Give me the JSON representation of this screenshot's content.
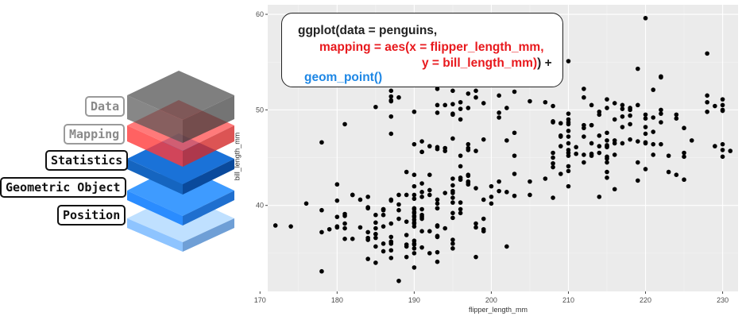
{
  "layers": {
    "data_label": "Data",
    "mapping_label": "Mapping",
    "statistics_label": "Statistics",
    "geometric_label": "Geometric Object",
    "position_label": "Position"
  },
  "code": {
    "line1": "ggplot(data = penguins,",
    "line2": "mapping = aes(x = flipper_length_mm,",
    "line3_red": "y = bill_length_mm)",
    "line3_black": ") +",
    "line4": "geom_point()"
  },
  "colors": {
    "panel_bg": "#ebebeb",
    "grid": "#ffffff",
    "point": "#000000",
    "layer_data": "#5a5a5a",
    "layer_mapping": "#ff4b4b",
    "layer_statistics": "#0a5fc4",
    "layer_geometric": "#2a8cff",
    "layer_position": "#8ec4ff",
    "code_red": "#e8191d",
    "code_blue": "#1e87e5"
  },
  "chart_data": {
    "type": "scatter",
    "title": "",
    "xlabel": "flipper_length_mm",
    "ylabel": "bill_length_mm",
    "xlim": [
      171,
      232
    ],
    "ylim": [
      31,
      61
    ],
    "x_ticks": [
      170,
      180,
      190,
      200,
      210,
      220,
      230
    ],
    "y_ticks": [
      40,
      50,
      60
    ],
    "grid": true,
    "points": [
      [
        181,
        39.1
      ],
      [
        186,
        39.5
      ],
      [
        195,
        40.3
      ],
      [
        193,
        36.7
      ],
      [
        190,
        39.3
      ],
      [
        181,
        38.9
      ],
      [
        195,
        39.2
      ],
      [
        193,
        34.1
      ],
      [
        190,
        42.0
      ],
      [
        186,
        37.8
      ],
      [
        180,
        37.8
      ],
      [
        182,
        41.1
      ],
      [
        191,
        38.6
      ],
      [
        198,
        34.6
      ],
      [
        185,
        36.6
      ],
      [
        195,
        38.7
      ],
      [
        197,
        42.5
      ],
      [
        184,
        34.4
      ],
      [
        194,
        46.0
      ],
      [
        174,
        37.8
      ],
      [
        180,
        37.7
      ],
      [
        189,
        35.9
      ],
      [
        185,
        38.2
      ],
      [
        180,
        38.8
      ],
      [
        187,
        35.3
      ],
      [
        183,
        40.6
      ],
      [
        187,
        40.5
      ],
      [
        172,
        37.9
      ],
      [
        180,
        40.5
      ],
      [
        178,
        39.5
      ],
      [
        178,
        37.2
      ],
      [
        188,
        39.5
      ],
      [
        184,
        40.9
      ],
      [
        195,
        36.4
      ],
      [
        196,
        39.2
      ],
      [
        190,
        38.8
      ],
      [
        180,
        42.2
      ],
      [
        181,
        37.6
      ],
      [
        184,
        39.8
      ],
      [
        182,
        36.5
      ],
      [
        195,
        40.8
      ],
      [
        186,
        36.0
      ],
      [
        196,
        44.1
      ],
      [
        185,
        37.0
      ],
      [
        190,
        39.6
      ],
      [
        182,
        41.1
      ],
      [
        179,
        37.5
      ],
      [
        190,
        36.0
      ],
      [
        191,
        42.3
      ],
      [
        186,
        39.6
      ],
      [
        188,
        40.1
      ],
      [
        190,
        35.0
      ],
      [
        200,
        42.0
      ],
      [
        187,
        34.5
      ],
      [
        191,
        41.4
      ],
      [
        186,
        39.0
      ],
      [
        193,
        40.6
      ],
      [
        181,
        36.5
      ],
      [
        194,
        37.6
      ],
      [
        185,
        35.7
      ],
      [
        195,
        41.3
      ],
      [
        185,
        37.6
      ],
      [
        192,
        41.1
      ],
      [
        184,
        36.4
      ],
      [
        192,
        41.6
      ],
      [
        195,
        35.5
      ],
      [
        188,
        41.1
      ],
      [
        190,
        35.9
      ],
      [
        198,
        41.8
      ],
      [
        190,
        33.5
      ],
      [
        190,
        39.7
      ],
      [
        196,
        39.6
      ],
      [
        197,
        45.8
      ],
      [
        190,
        35.5
      ],
      [
        195,
        42.8
      ],
      [
        191,
        40.9
      ],
      [
        184,
        37.2
      ],
      [
        187,
        36.2
      ],
      [
        195,
        42.1
      ],
      [
        189,
        34.6
      ],
      [
        196,
        42.9
      ],
      [
        187,
        36.7
      ],
      [
        193,
        35.1
      ],
      [
        191,
        37.3
      ],
      [
        194,
        41.3
      ],
      [
        190,
        36.3
      ],
      [
        189,
        36.9
      ],
      [
        189,
        38.3
      ],
      [
        190,
        38.9
      ],
      [
        202,
        35.7
      ],
      [
        205,
        41.1
      ],
      [
        185,
        34.0
      ],
      [
        186,
        39.6
      ],
      [
        187,
        36.2
      ],
      [
        208,
        40.8
      ],
      [
        190,
        38.1
      ],
      [
        196,
        40.3
      ],
      [
        178,
        33.1
      ],
      [
        192,
        43.2
      ],
      [
        192,
        35.0
      ],
      [
        203,
        41.0
      ],
      [
        183,
        37.7
      ],
      [
        190,
        37.8
      ],
      [
        193,
        37.9
      ],
      [
        184,
        39.7
      ],
      [
        199,
        38.6
      ],
      [
        190,
        38.2
      ],
      [
        181,
        38.1
      ],
      [
        197,
        43.2
      ],
      [
        198,
        38.1
      ],
      [
        191,
        45.6
      ],
      [
        193,
        39.7
      ],
      [
        197,
        42.2
      ],
      [
        191,
        39.6
      ],
      [
        196,
        42.7
      ],
      [
        188,
        38.6
      ],
      [
        199,
        37.3
      ],
      [
        189,
        35.7
      ],
      [
        189,
        41.1
      ],
      [
        187,
        36.2
      ],
      [
        198,
        37.7
      ],
      [
        176,
        40.2
      ],
      [
        202,
        41.4
      ],
      [
        186,
        35.2
      ],
      [
        199,
        40.6
      ],
      [
        191,
        38.8
      ],
      [
        195,
        41.5
      ],
      [
        191,
        39.0
      ],
      [
        210,
        44.1
      ],
      [
        190,
        38.5
      ],
      [
        197,
        43.1
      ],
      [
        193,
        36.8
      ],
      [
        199,
        37.5
      ],
      [
        187,
        38.1
      ],
      [
        190,
        41.1
      ],
      [
        191,
        35.6
      ],
      [
        200,
        40.2
      ],
      [
        185,
        37.0
      ],
      [
        193,
        39.7
      ],
      [
        193,
        40.2
      ],
      [
        187,
        40.6
      ],
      [
        188,
        32.1
      ],
      [
        190,
        40.7
      ],
      [
        192,
        37.3
      ],
      [
        185,
        39.0
      ],
      [
        190,
        39.2
      ],
      [
        184,
        36.6
      ],
      [
        195,
        36.0
      ],
      [
        193,
        37.8
      ],
      [
        187,
        36.0
      ],
      [
        201,
        41.5
      ],
      [
        211,
        46.1
      ],
      [
        230,
        50.0
      ],
      [
        210,
        48.7
      ],
      [
        218,
        50.0
      ],
      [
        215,
        47.6
      ],
      [
        210,
        46.5
      ],
      [
        211,
        45.4
      ],
      [
        219,
        46.7
      ],
      [
        209,
        43.3
      ],
      [
        215,
        46.8
      ],
      [
        214,
        40.9
      ],
      [
        216,
        49.0
      ],
      [
        214,
        45.5
      ],
      [
        213,
        48.4
      ],
      [
        210,
        45.8
      ],
      [
        217,
        49.3
      ],
      [
        210,
        42.0
      ],
      [
        221,
        49.2
      ],
      [
        209,
        46.2
      ],
      [
        222,
        48.7
      ],
      [
        218,
        50.2
      ],
      [
        215,
        45.1
      ],
      [
        213,
        46.5
      ],
      [
        215,
        46.3
      ],
      [
        215,
        42.9
      ],
      [
        215,
        46.1
      ],
      [
        215,
        44.5
      ],
      [
        210,
        47.8
      ],
      [
        220,
        48.2
      ],
      [
        222,
        50.0
      ],
      [
        209,
        47.3
      ],
      [
        207,
        42.8
      ],
      [
        230,
        45.1
      ],
      [
        220,
        59.6
      ],
      [
        220,
        49.1
      ],
      [
        213,
        48.4
      ],
      [
        219,
        42.6
      ],
      [
        208,
        44.4
      ],
      [
        208,
        44.0
      ],
      [
        208,
        48.7
      ],
      [
        225,
        42.7
      ],
      [
        210,
        49.6
      ],
      [
        216,
        45.3
      ],
      [
        222,
        49.6
      ],
      [
        217,
        50.5
      ],
      [
        210,
        43.6
      ],
      [
        225,
        45.5
      ],
      [
        213,
        50.5
      ],
      [
        215,
        44.9
      ],
      [
        210,
        45.2
      ],
      [
        220,
        46.6
      ],
      [
        210,
        48.5
      ],
      [
        225,
        45.1
      ],
      [
        217,
        50.1
      ],
      [
        220,
        46.5
      ],
      [
        208,
        45.0
      ],
      [
        220,
        43.8
      ],
      [
        208,
        45.5
      ],
      [
        224,
        43.2
      ],
      [
        208,
        50.4
      ],
      [
        221,
        45.3
      ],
      [
        214,
        46.2
      ],
      [
        231,
        45.7
      ],
      [
        219,
        54.3
      ],
      [
        230,
        45.8
      ],
      [
        214,
        49.8
      ],
      [
        229,
        46.2
      ],
      [
        220,
        49.5
      ],
      [
        223,
        43.5
      ],
      [
        216,
        50.7
      ],
      [
        221,
        47.7
      ],
      [
        221,
        46.4
      ],
      [
        217,
        48.2
      ],
      [
        216,
        46.5
      ],
      [
        230,
        46.4
      ],
      [
        209,
        48.6
      ],
      [
        220,
        47.5
      ],
      [
        215,
        51.1
      ],
      [
        223,
        45.2
      ],
      [
        212,
        45.3
      ],
      [
        221,
        52.1
      ],
      [
        212,
        52.2
      ],
      [
        224,
        49.5
      ],
      [
        212,
        44.5
      ],
      [
        228,
        50.8
      ],
      [
        218,
        49.4
      ],
      [
        218,
        46.9
      ],
      [
        212,
        48.4
      ],
      [
        230,
        51.1
      ],
      [
        218,
        48.5
      ],
      [
        228,
        55.9
      ],
      [
        212,
        47.2
      ],
      [
        224,
        49.1
      ],
      [
        214,
        47.3
      ],
      [
        226,
        46.8
      ],
      [
        216,
        41.7
      ],
      [
        222,
        53.4
      ],
      [
        203,
        43.3
      ],
      [
        225,
        48.1
      ],
      [
        219,
        50.5
      ],
      [
        228,
        49.8
      ],
      [
        215,
        43.5
      ],
      [
        228,
        51.5
      ],
      [
        215,
        46.2
      ],
      [
        210,
        55.1
      ],
      [
        219,
        44.5
      ],
      [
        208,
        48.8
      ],
      [
        209,
        47.2
      ],
      [
        216,
        46.8
      ],
      [
        229,
        50.4
      ],
      [
        213,
        45.2
      ],
      [
        230,
        49.9
      ],
      [
        217,
        46.5
      ],
      [
        230,
        50.5
      ],
      [
        222,
        53.5
      ],
      [
        214,
        49.5
      ],
      [
        215,
        50.2
      ],
      [
        222,
        46.4
      ],
      [
        212,
        51.3
      ],
      [
        213,
        45.4
      ],
      [
        192,
        52.7
      ],
      [
        196,
        45.2
      ],
      [
        193,
        46.1
      ],
      [
        188,
        51.3
      ],
      [
        197,
        46.0
      ],
      [
        198,
        51.3
      ],
      [
        178,
        46.6
      ],
      [
        197,
        51.7
      ],
      [
        195,
        47.0
      ],
      [
        198,
        52.0
      ],
      [
        193,
        45.9
      ],
      [
        194,
        50.5
      ],
      [
        185,
        50.3
      ],
      [
        201,
        58.0
      ],
      [
        190,
        46.4
      ],
      [
        201,
        49.2
      ],
      [
        197,
        42.4
      ],
      [
        181,
        48.5
      ],
      [
        190,
        43.2
      ],
      [
        195,
        50.6
      ],
      [
        191,
        46.7
      ],
      [
        187,
        52.0
      ],
      [
        193,
        50.5
      ],
      [
        195,
        49.5
      ],
      [
        197,
        46.4
      ],
      [
        200,
        52.8
      ],
      [
        200,
        40.9
      ],
      [
        191,
        54.2
      ],
      [
        205,
        42.5
      ],
      [
        187,
        51.0
      ],
      [
        201,
        49.7
      ],
      [
        187,
        47.5
      ],
      [
        203,
        47.6
      ],
      [
        195,
        52.0
      ],
      [
        199,
        46.9
      ],
      [
        195,
        53.5
      ],
      [
        210,
        49.0
      ],
      [
        192,
        46.2
      ],
      [
        205,
        50.9
      ],
      [
        210,
        45.5
      ],
      [
        187,
        50.9
      ],
      [
        196,
        50.8
      ],
      [
        196,
        50.1
      ],
      [
        196,
        49.0
      ],
      [
        201,
        51.5
      ],
      [
        190,
        49.8
      ],
      [
        212,
        48.1
      ],
      [
        187,
        51.4
      ],
      [
        198,
        45.7
      ],
      [
        199,
        50.7
      ],
      [
        201,
        42.5
      ],
      [
        193,
        52.2
      ],
      [
        203,
        45.2
      ],
      [
        187,
        49.3
      ],
      [
        197,
        50.2
      ],
      [
        191,
        45.6
      ],
      [
        203,
        51.9
      ],
      [
        202,
        46.8
      ],
      [
        194,
        45.7
      ],
      [
        206,
        55.8
      ],
      [
        189,
        43.5
      ],
      [
        195,
        49.6
      ],
      [
        207,
        50.8
      ],
      [
        202,
        50.2
      ],
      [
        193,
        49.7
      ],
      [
        210,
        47.2
      ]
    ]
  }
}
